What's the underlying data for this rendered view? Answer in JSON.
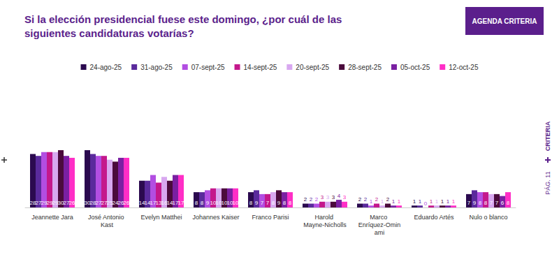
{
  "page": {
    "badge": "AGENDA CRITERIA",
    "side_label": "CRITERIA",
    "page_number": "PÁG. 11"
  },
  "chart_data": {
    "type": "bar",
    "title": "Si la elección presidencial fuese este domingo, ¿por cuál de las siguientes candidaturas votarías?",
    "categories": [
      "Jeannette Jara",
      "José Antonio Kast",
      "Evelyn Matthei",
      "Johannes Kaiser",
      "Franco Parisi",
      "Harold Mayne-Nicholls",
      "Marco Enríquez-Ominami",
      "Eduardo Artés",
      "Nulo o blanco"
    ],
    "series": [
      {
        "name": "24-ago-25",
        "color": "#2b0a4f",
        "values": [
          28,
          30,
          14,
          8,
          8,
          2,
          2,
          1,
          7
        ]
      },
      {
        "name": "31-ago-25",
        "color": "#5a2a9c",
        "values": [
          27,
          28,
          14,
          8,
          9,
          2,
          2,
          1,
          9
        ]
      },
      {
        "name": "07-sept-25",
        "color": "#b24ee2",
        "values": [
          29,
          27,
          17,
          9,
          7,
          2,
          1,
          0,
          8
        ]
      },
      {
        "name": "14-sept-25",
        "color": "#c4188c",
        "values": [
          29,
          27,
          13,
          10,
          7,
          3,
          2,
          1,
          8
        ]
      },
      {
        "name": "20-sept-25",
        "color": "#d8a8f0",
        "values": [
          29,
          25,
          16,
          10,
          8,
          3,
          1,
          1,
          7
        ]
      },
      {
        "name": "28-sept-25",
        "color": "#4b0b3c",
        "values": [
          30,
          24,
          14,
          10,
          9,
          3,
          2,
          1,
          7
        ]
      },
      {
        "name": "05-oct-25",
        "color": "#7a20a2",
        "values": [
          27,
          26,
          17,
          10,
          8,
          4,
          1,
          1,
          6
        ]
      },
      {
        "name": "12-oct-25",
        "color": "#ff2ec6",
        "values": [
          26,
          26,
          17,
          10,
          8,
          3,
          1,
          1,
          8
        ]
      }
    ],
    "ylim": [
      0,
      60
    ],
    "grid": false,
    "legend": "top",
    "data_labels": true,
    "tick_labels": "x"
  }
}
